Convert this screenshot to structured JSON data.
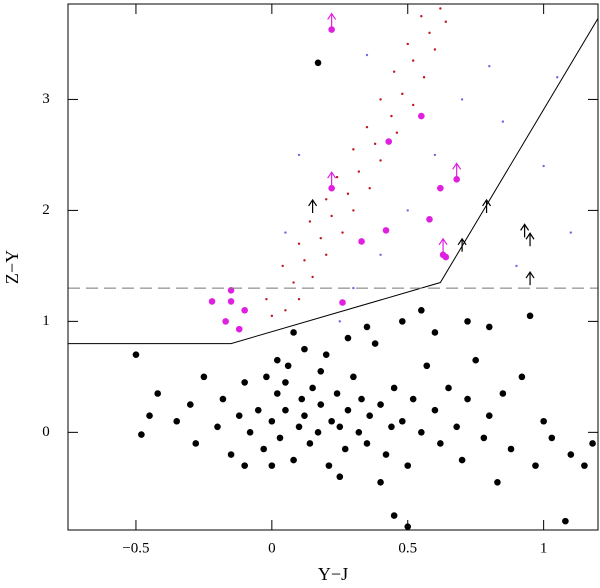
{
  "chart_data": {
    "type": "scatter",
    "xlabel": "Y−J",
    "ylabel": "Z−Y",
    "xlim": [
      -0.75,
      1.2
    ],
    "ylim": [
      -0.88,
      3.86
    ],
    "xticks": [
      {
        "value": -0.5,
        "label": "−0.5"
      },
      0,
      0.5,
      1
    ],
    "yticks": [
      0,
      1,
      2,
      3
    ],
    "series": [
      {
        "marker": "point",
        "color": "#6a6ae8",
        "x": [
          0.25,
          0.3,
          0.4,
          0.5,
          0.6,
          0.7,
          0.8,
          1.0,
          0.9,
          1.1,
          0.1,
          0.05,
          0.35,
          0.85,
          1.05
        ],
        "values": [
          1.0,
          1.3,
          1.6,
          2.0,
          2.5,
          3.0,
          3.3,
          2.4,
          1.5,
          1.8,
          2.5,
          1.8,
          3.4,
          2.8,
          3.2
        ]
      },
      {
        "marker": "point",
        "color": "#c0141e",
        "x": [
          0.0,
          0.05,
          0.1,
          -0.02,
          0.08,
          0.15,
          0.04,
          0.12,
          0.2,
          0.1,
          0.18,
          0.26,
          0.14,
          0.22,
          0.3,
          0.2,
          0.28,
          0.36,
          0.24,
          0.32,
          0.4,
          0.3,
          0.38,
          0.46,
          0.35,
          0.44,
          0.52,
          0.4,
          0.48,
          0.56,
          0.45,
          0.52,
          0.6,
          0.5,
          0.58,
          0.64,
          0.55,
          0.62
        ],
        "values": [
          1.05,
          1.1,
          1.2,
          1.2,
          1.35,
          1.4,
          1.5,
          1.55,
          1.6,
          1.7,
          1.75,
          1.8,
          1.9,
          1.95,
          2.0,
          2.1,
          2.15,
          2.2,
          2.3,
          2.35,
          2.45,
          2.55,
          2.6,
          2.7,
          2.75,
          2.85,
          2.95,
          3.0,
          3.05,
          3.2,
          3.25,
          3.35,
          3.45,
          3.5,
          3.6,
          3.7,
          3.75,
          3.82
        ]
      },
      {
        "marker": "dot",
        "color": "#000000",
        "x": [
          -0.5,
          -0.48,
          -0.42,
          -0.45,
          -0.35,
          -0.3,
          -0.28,
          -0.25,
          -0.2,
          -0.18,
          -0.15,
          -0.12,
          -0.1,
          -0.08,
          -0.05,
          -0.03,
          0.0,
          0.02,
          0.03,
          0.05,
          0.06,
          0.08,
          0.1,
          0.11,
          0.12,
          0.14,
          0.15,
          0.17,
          0.18,
          0.2,
          0.21,
          0.22,
          0.24,
          0.25,
          0.27,
          0.28,
          0.3,
          0.32,
          0.33,
          0.35,
          0.36,
          0.38,
          0.4,
          0.42,
          0.44,
          0.45,
          0.48,
          0.5,
          0.52,
          0.55,
          0.57,
          0.6,
          0.62,
          0.65,
          0.68,
          0.7,
          0.72,
          0.75,
          0.78,
          0.8,
          0.83,
          0.85,
          0.88,
          0.92,
          0.95,
          0.97,
          1.0,
          1.03,
          1.1,
          1.15,
          1.18,
          0.5,
          0.45,
          1.08,
          0.17,
          0.55,
          0.48,
          0.72,
          0.8,
          0.08,
          0.12,
          0.02,
          -0.02,
          0.18,
          0.05,
          0.28,
          0.35,
          0.6,
          0.25,
          -0.1,
          0.0,
          0.4
        ],
        "values": [
          0.7,
          -0.02,
          0.35,
          0.15,
          0.1,
          0.25,
          -0.1,
          0.5,
          0.05,
          0.3,
          -0.2,
          0.15,
          0.45,
          0.0,
          0.2,
          -0.15,
          0.1,
          0.35,
          -0.05,
          0.2,
          0.6,
          -0.25,
          0.05,
          0.3,
          0.15,
          -0.1,
          0.4,
          0.0,
          0.25,
          0.7,
          -0.3,
          0.1,
          0.35,
          0.05,
          -0.15,
          0.2,
          0.5,
          0.0,
          0.3,
          -0.1,
          0.15,
          0.8,
          0.25,
          -0.2,
          0.05,
          0.4,
          0.1,
          -0.3,
          0.3,
          0.0,
          0.6,
          0.2,
          -0.1,
          0.4,
          0.05,
          -0.25,
          0.3,
          0.65,
          -0.05,
          0.15,
          -0.45,
          0.35,
          -0.15,
          0.5,
          1.05,
          -0.3,
          0.1,
          -0.05,
          -0.2,
          -0.3,
          -0.1,
          -0.85,
          -0.75,
          -0.8,
          3.33,
          1.1,
          1.0,
          1.0,
          0.95,
          0.9,
          0.75,
          0.65,
          0.5,
          0.55,
          0.45,
          0.85,
          0.95,
          0.9,
          -0.4,
          -0.3,
          -0.3,
          -0.45
        ]
      },
      {
        "marker": "dot",
        "color": "#e020e0",
        "x": [
          -0.22,
          -0.15,
          -0.15,
          -0.17,
          -0.1,
          -0.12,
          0.22,
          0.22,
          0.43,
          0.55,
          0.58,
          0.62,
          0.68,
          0.63,
          0.64,
          0.42,
          0.33,
          0.26
        ],
        "values": [
          1.18,
          1.28,
          1.18,
          1.0,
          1.1,
          0.93,
          3.63,
          2.2,
          2.62,
          2.85,
          1.92,
          2.2,
          2.28,
          1.6,
          1.58,
          1.82,
          1.72,
          1.17
        ]
      },
      {
        "marker": "arrow",
        "color": "#000000",
        "x": [
          0.15,
          0.7,
          0.79,
          0.93,
          0.95,
          0.95
        ],
        "values": [
          1.95,
          1.6,
          1.95,
          1.73,
          1.3,
          1.65
        ]
      },
      {
        "marker": "arrow",
        "color": "#e020e0",
        "x": [
          0.22,
          0.22,
          0.68,
          0.63
        ],
        "values": [
          3.63,
          2.2,
          2.28,
          1.6
        ]
      },
      {
        "marker": "line",
        "color": "#000000",
        "dashed": false,
        "x": [
          -0.75,
          -0.15,
          0.62,
          1.2
        ],
        "values": [
          0.8,
          0.8,
          1.35,
          3.73
        ]
      },
      {
        "marker": "line",
        "color": "#777777",
        "dashed": true,
        "x": [
          -0.75,
          1.2
        ],
        "values": [
          1.3,
          1.3
        ]
      }
    ]
  }
}
